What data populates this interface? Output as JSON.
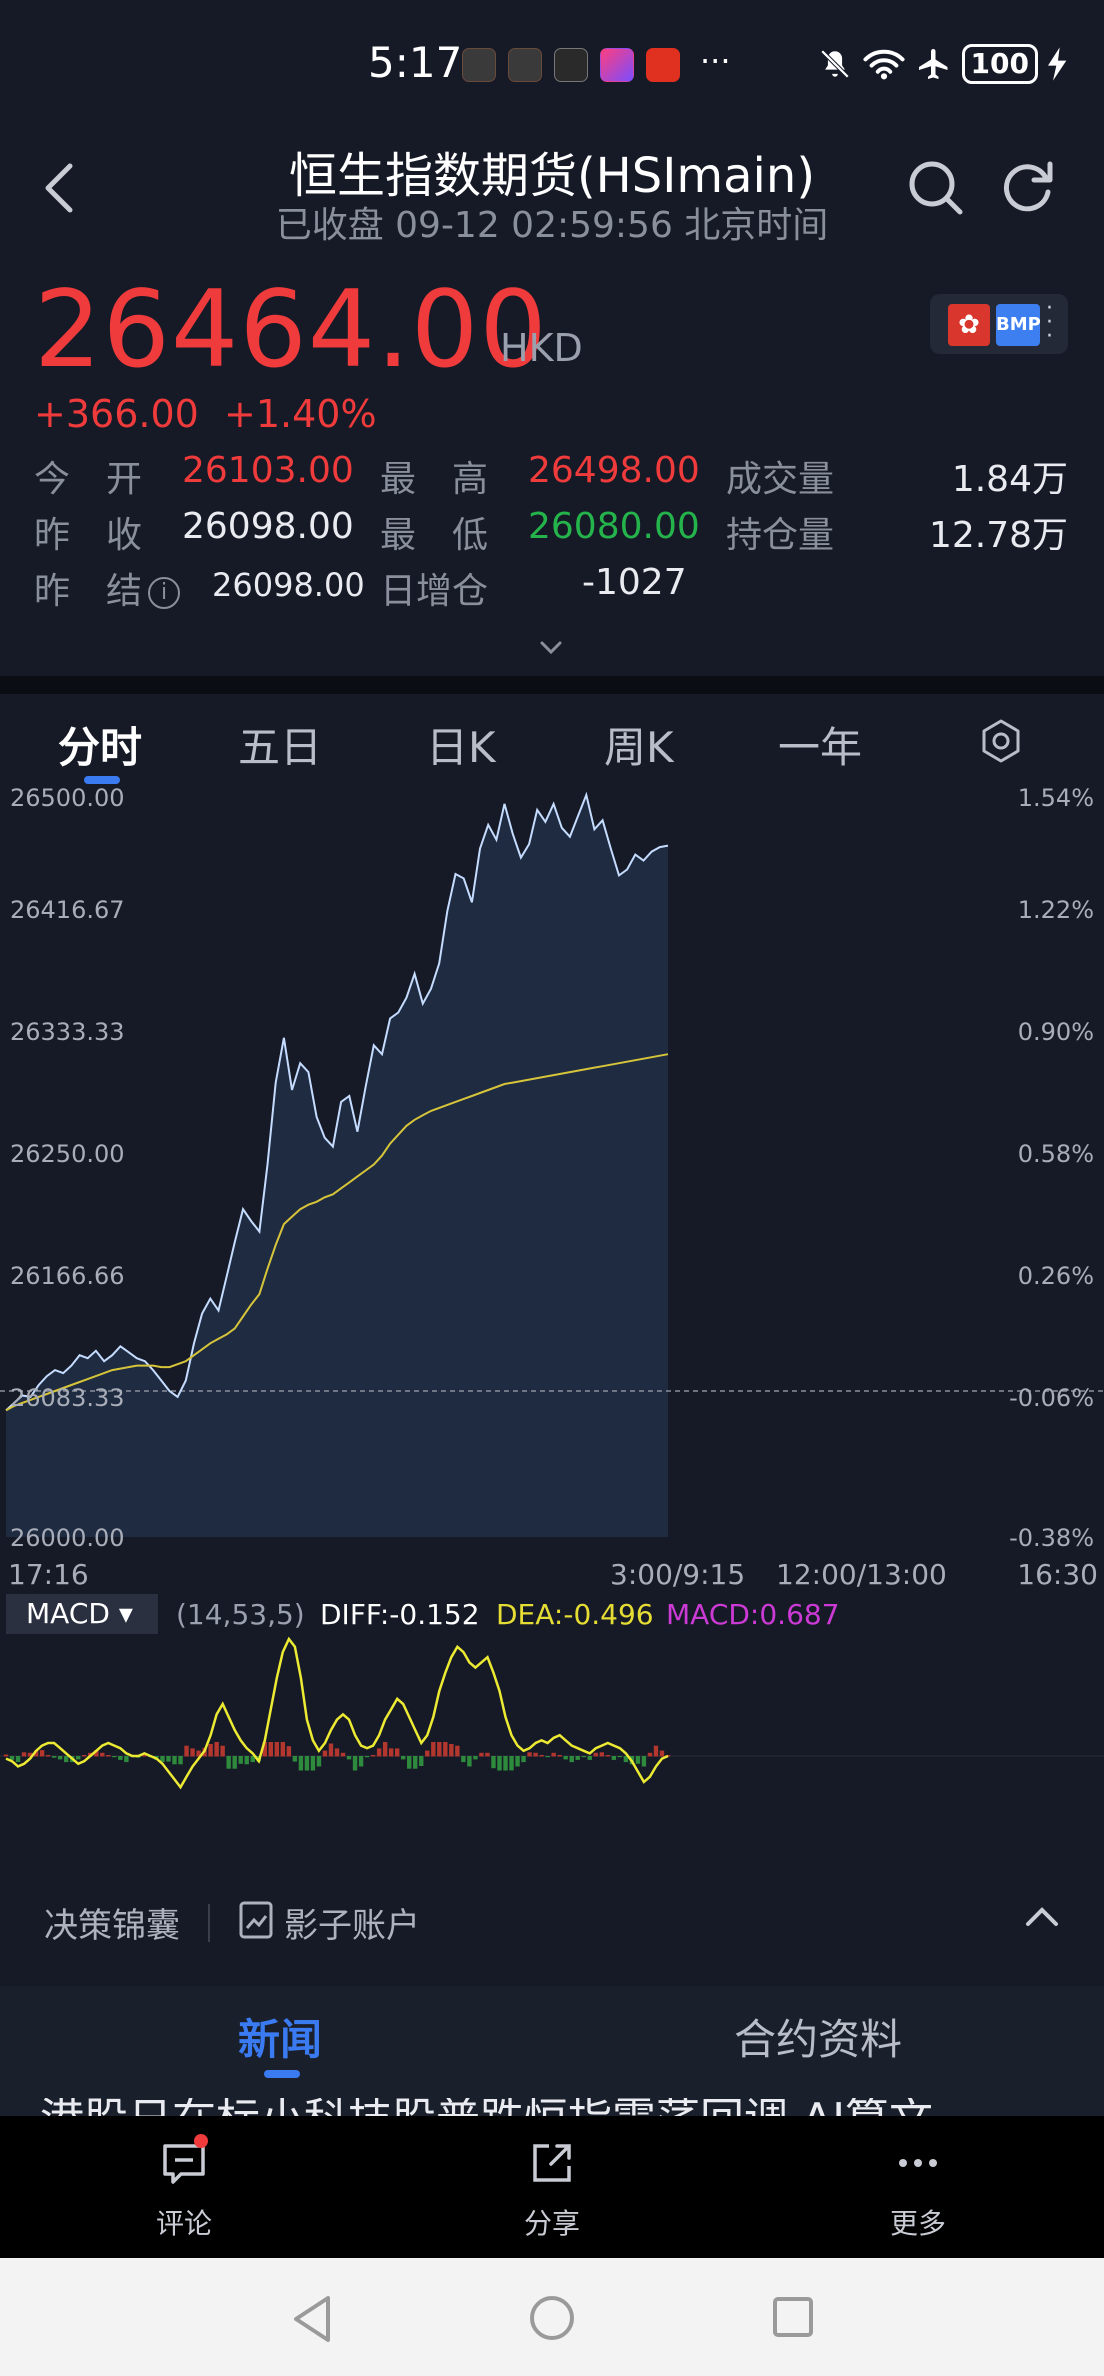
{
  "status_bar": {
    "time": "5:17",
    "more_indicator": "···",
    "battery": "100",
    "icons": [
      "app-icon-huawei",
      "app-icon-huawei",
      "mail-icon",
      "video-app-icon",
      "red-app-icon",
      "mute-icon",
      "wifi-icon",
      "airplane-icon",
      "charging-icon"
    ]
  },
  "header": {
    "title": "恒生指数期货(HSImain)",
    "subtitle": "已收盘 09-12 02:59:56 北京时间"
  },
  "quote": {
    "price": "26464.00",
    "currency": "HKD",
    "change": "+366.00",
    "change_pct": "+1.40%",
    "badge_bmp": "BMP",
    "up_color": "#ef3b3b",
    "down_color": "#25b34b"
  },
  "stats": {
    "open_label": "今　开",
    "open_value": "26103.00",
    "high_label": "最　高",
    "high_value": "26498.00",
    "volume_label": "成交量",
    "volume_value": "1.84万",
    "prev_close_label": "昨　收",
    "prev_close_value": "26098.00",
    "low_label": "最　低",
    "low_value": "26080.00",
    "open_interest_label": "持仓量",
    "open_interest_value": "12.78万",
    "prev_settle_label": "昨　结",
    "prev_settle_value": "26098.00",
    "oi_change_label": "日增仓",
    "oi_change_value": "-1027"
  },
  "tabs": [
    "分时",
    "五日",
    "日K",
    "周K",
    "一年"
  ],
  "active_tab": "分时",
  "chart_data": {
    "type": "line",
    "y_left_ticks": [
      "26500.00",
      "26416.67",
      "26333.33",
      "26250.00",
      "26166.66",
      "26083.33",
      "26000.00"
    ],
    "y_right_ticks": [
      "1.54%",
      "1.22%",
      "0.90%",
      "0.58%",
      "0.26%",
      "-0.06%",
      "-0.38%"
    ],
    "x_ticks": [
      "17:16",
      "3:00/9:15",
      "12:00/13:00",
      "16:30"
    ],
    "ylim": [
      26000,
      26500
    ],
    "reference_line": 26098,
    "series": [
      {
        "values": [
          26085,
          26090,
          26095,
          26094,
          26102,
          26108,
          26112,
          26110,
          26115,
          26122,
          26120,
          26125,
          26118,
          26122,
          26128,
          26124,
          26120,
          26118,
          26112,
          26105,
          26098,
          26094,
          26105,
          26130,
          26150,
          26160,
          26152,
          26175,
          26198,
          26220,
          26212,
          26205,
          26250,
          26305,
          26335,
          26300,
          26318,
          26312,
          26282,
          26268,
          26262,
          26292,
          26296,
          26272,
          26302,
          26330,
          26324,
          26348,
          26352,
          26362,
          26378,
          26358,
          26368,
          26385,
          26420,
          26445,
          26442,
          26426,
          26462,
          26478,
          26468,
          26492,
          26472,
          26456,
          26465,
          26488,
          26480,
          26492,
          26476,
          26470,
          26484,
          26498,
          26475,
          26481,
          26462,
          26444,
          26448,
          26458,
          26454,
          26460,
          26463,
          26464
        ],
        "color": "#c5dcff"
      },
      {
        "values": [
          26085,
          26088,
          26090,
          26092,
          26094,
          26096,
          26098,
          26100,
          26102,
          26104,
          26106,
          26108,
          26110,
          26112,
          26113,
          26114,
          26115,
          26115,
          26115,
          26114,
          26114,
          26116,
          26118,
          26122,
          26126,
          26130,
          26133,
          26136,
          26140,
          26148,
          26156,
          26163,
          26180,
          26196,
          26210,
          26215,
          26220,
          26223,
          26225,
          26228,
          26230,
          26234,
          26238,
          26242,
          26246,
          26250,
          26256,
          26264,
          26270,
          26276,
          26280,
          26283,
          26286,
          26288,
          26290,
          26292,
          26294,
          26296,
          26298,
          26300,
          26302,
          26304,
          26305,
          26306,
          26307,
          26308,
          26309,
          26310,
          26311,
          26312,
          26313,
          26314,
          26315,
          26316,
          26317,
          26318,
          26319,
          26320,
          26321,
          26322,
          26323,
          26324
        ],
        "color": "#d6c43a"
      }
    ]
  },
  "macd": {
    "selector": "MACD ▾",
    "params": "(14,53,5)",
    "diff": "DIFF:-0.152",
    "dea": "DEA:-0.496",
    "macd": "MACD:0.687",
    "values": [
      -1,
      -2,
      -4,
      -3,
      -1,
      2,
      4,
      5,
      5,
      3,
      1,
      -1,
      -3,
      -2,
      0,
      2,
      4,
      5,
      4,
      3,
      1,
      0,
      0,
      1,
      0,
      -1,
      -3,
      -6,
      -9,
      -12,
      -8,
      -4,
      -1,
      2,
      8,
      16,
      20,
      15,
      10,
      6,
      3,
      1,
      -2,
      6,
      18,
      30,
      40,
      45,
      42,
      30,
      14,
      6,
      2,
      5,
      10,
      14,
      16,
      14,
      8,
      4,
      3,
      4,
      8,
      14,
      18,
      22,
      20,
      15,
      10,
      5,
      8,
      15,
      25,
      32,
      38,
      42,
      40,
      36,
      34,
      36,
      38,
      32,
      25,
      15,
      8,
      4,
      2,
      3,
      5,
      6,
      5,
      7,
      8,
      6,
      4,
      3,
      2,
      1,
      3,
      4,
      5,
      4,
      3,
      1,
      -2,
      -6,
      -10,
      -8,
      -4,
      -1,
      0
    ],
    "line_color": "#ecea33"
  },
  "tools": {
    "decision": "决策锦囊",
    "shadow_account": "影子账户"
  },
  "news_tabs": {
    "news": "新闻",
    "contract": "合约资料",
    "peek_headline": "港股日在标小科技股普跌恒指震荡回调 AI算文"
  },
  "bottom_bar": {
    "comment": "评论",
    "share": "分享",
    "more": "更多"
  }
}
